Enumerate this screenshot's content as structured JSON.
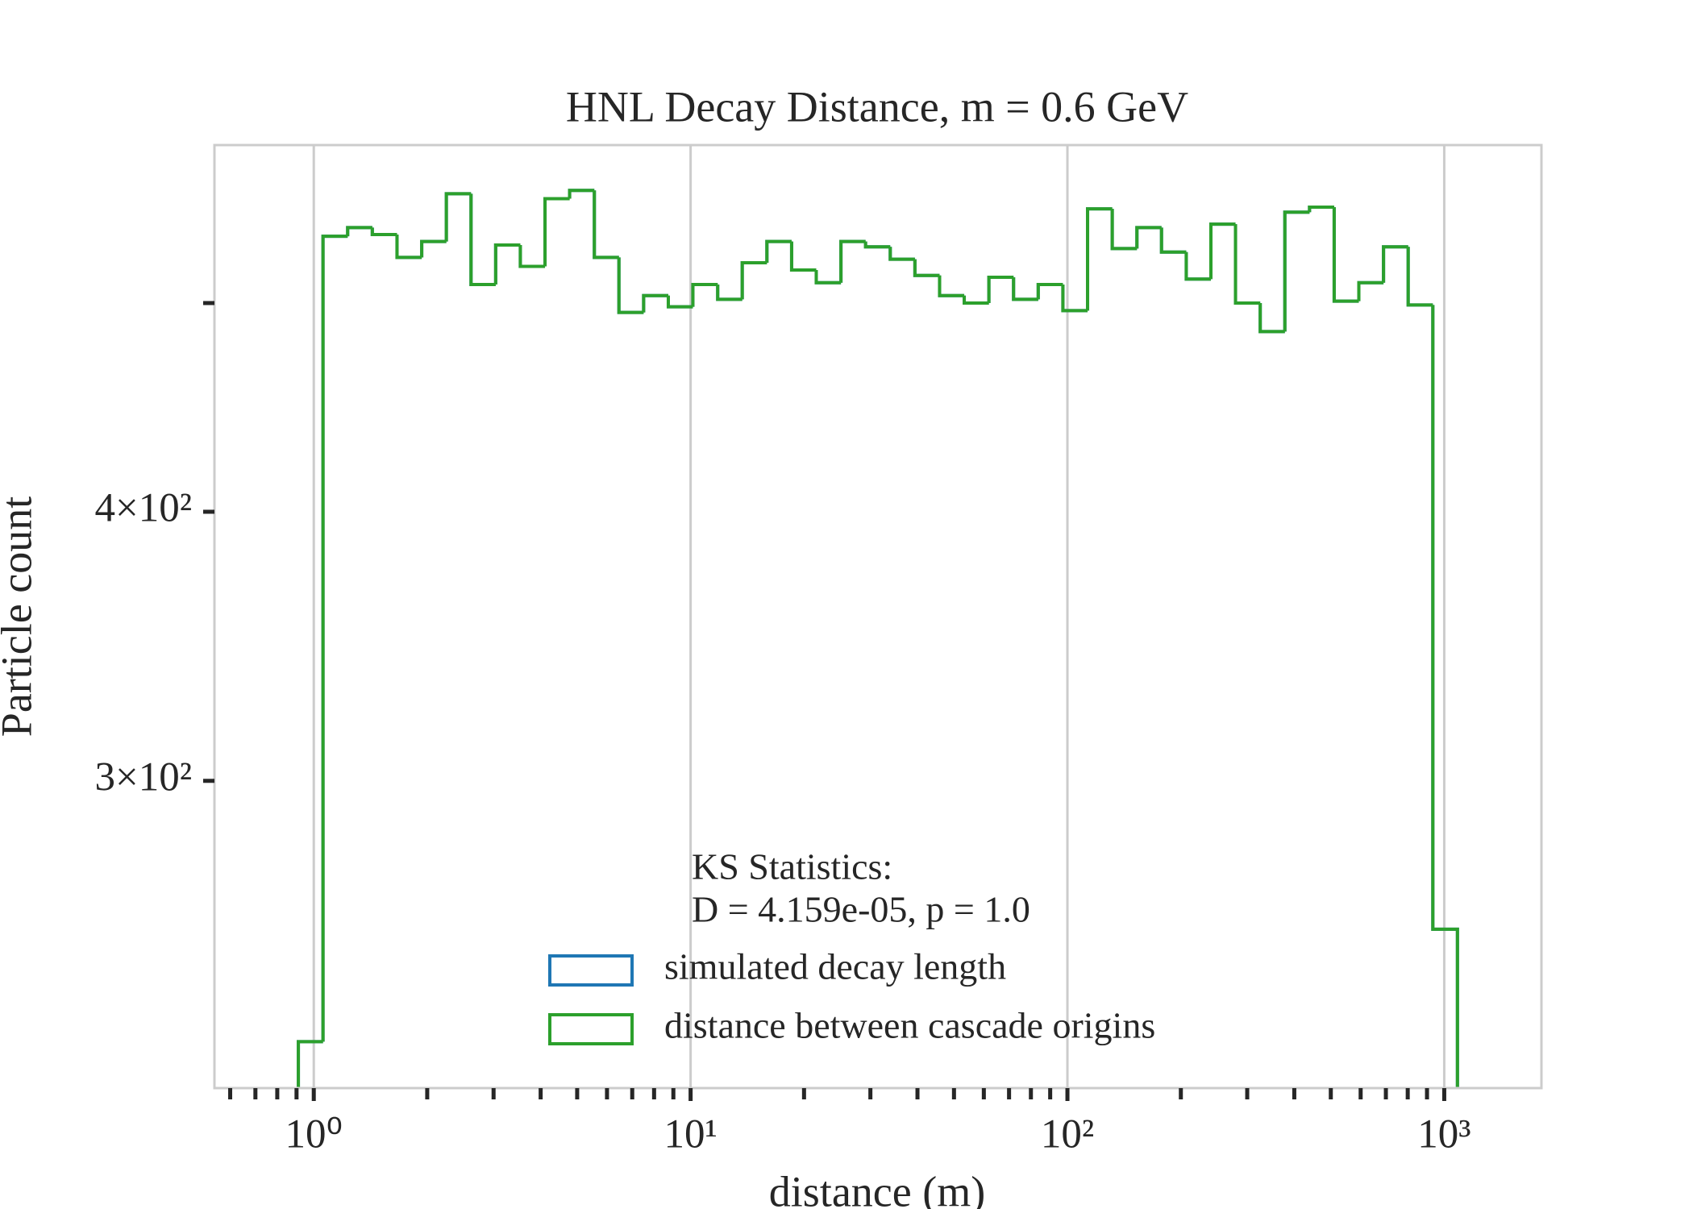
{
  "chart_data": {
    "type": "histogram",
    "title": "HNL Decay Distance, m = 0.6 GeV",
    "xlabel": "distance (m)",
    "ylabel": "Particle count",
    "xscale": "log",
    "yscale": "log",
    "grid": "x",
    "xlim": [
      0.545,
      1811
    ],
    "ylim": [
      216,
      592
    ],
    "xticks": [
      {
        "value": 1,
        "label": "10⁰"
      },
      {
        "value": 10,
        "label": "10¹"
      },
      {
        "value": 100,
        "label": "10²"
      },
      {
        "value": 1000,
        "label": "10³"
      }
    ],
    "xminorticks": [
      0.6,
      0.7,
      0.8,
      0.9,
      2,
      3,
      4,
      5,
      6,
      7,
      8,
      9,
      20,
      30,
      40,
      50,
      60,
      70,
      80,
      90,
      200,
      300,
      400,
      500,
      600,
      700,
      800,
      900
    ],
    "yticks": [
      {
        "value": 300,
        "label": "3×10²"
      },
      {
        "value": 400,
        "label": "4×10²"
      },
      {
        "value": 500,
        "label": null
      }
    ],
    "bins": [
      0.91,
      1.058,
      1.23,
      1.43,
      1.663,
      1.934,
      2.248,
      2.614,
      3.039,
      3.533,
      4.108,
      4.775,
      5.553,
      6.454,
      7.505,
      8.727,
      10.14,
      11.8,
      13.71,
      15.94,
      18.54,
      21.55,
      25.06,
      29.13,
      33.87,
      39.38,
      45.79,
      53.23,
      61.89,
      71.95,
      83.66,
      97.27,
      113.1,
      131.5,
      152.9,
      177.7,
      206.7,
      240.3,
      279.3,
      324.8,
      377.6,
      439.0,
      510.4,
      593.4,
      690.0,
      802.2,
      932.6,
      1084
    ],
    "series": [
      {
        "name": "simulated decay length",
        "color": "#1f77b4",
        "values": [
          227,
          537,
          542,
          538,
          525,
          534,
          562,
          510,
          532,
          520,
          559,
          564,
          525,
          495,
          504,
          498,
          510,
          502,
          522,
          534,
          518,
          511,
          534,
          531,
          524,
          515,
          504,
          500,
          514,
          502,
          510,
          496,
          553,
          530,
          542,
          528,
          513,
          544,
          500,
          485,
          551,
          554,
          501,
          511,
          531,
          499,
          256
        ]
      },
      {
        "name": "distance between cascade origins",
        "color": "#2ca02c",
        "values": [
          227,
          537,
          542,
          538,
          525,
          534,
          562,
          510,
          532,
          520,
          559,
          564,
          525,
          495,
          504,
          498,
          510,
          502,
          522,
          534,
          518,
          511,
          534,
          531,
          524,
          515,
          504,
          500,
          514,
          502,
          510,
          496,
          553,
          530,
          542,
          528,
          513,
          544,
          500,
          485,
          551,
          554,
          501,
          511,
          531,
          499,
          256
        ]
      }
    ],
    "annotation": [
      "KS Statistics:",
      "D = 4.159e-05, p = 1.0"
    ]
  }
}
